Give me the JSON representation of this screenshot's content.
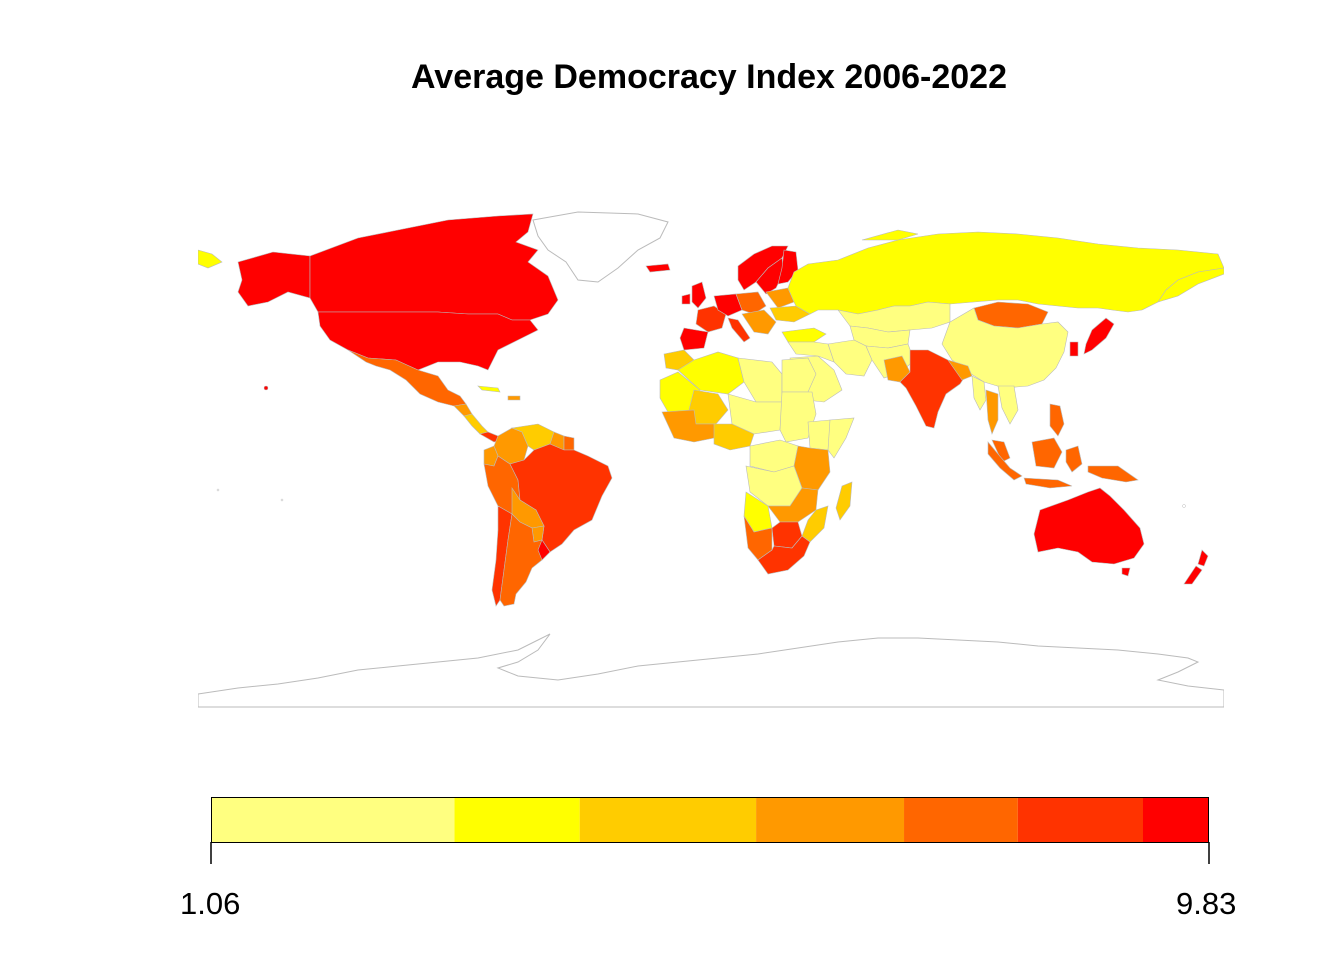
{
  "title": "Average Democracy Index 2006-2022",
  "legend": {
    "min_label": "1.06",
    "max_label": "9.83",
    "min_value": 1.06,
    "max_value": 9.83,
    "bins": [
      {
        "color": "#FFFF80",
        "from": 1.06,
        "to": 3.2
      },
      {
        "color": "#FFFF00",
        "from": 3.2,
        "to": 4.3
      },
      {
        "color": "#FFCC00",
        "from": 4.3,
        "to": 5.85
      },
      {
        "color": "#FF9900",
        "from": 5.85,
        "to": 7.15
      },
      {
        "color": "#FF6600",
        "from": 7.15,
        "to": 8.15
      },
      {
        "color": "#FF3300",
        "from": 8.15,
        "to": 9.25
      },
      {
        "color": "#FF0000",
        "from": 9.25,
        "to": 9.83
      }
    ]
  },
  "colors": {
    "border": "#BBBBBB",
    "background": "#FFFFFF",
    "no_data": "#FFFFFF"
  }
}
